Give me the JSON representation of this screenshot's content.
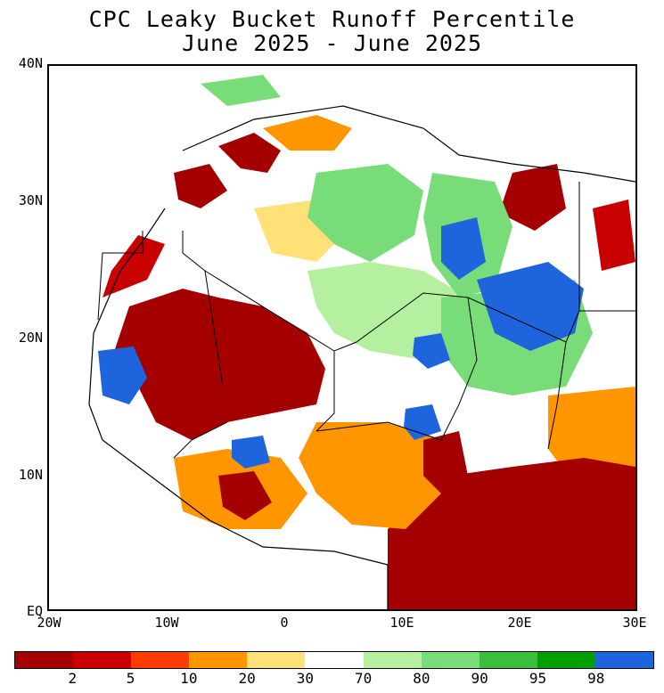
{
  "title": {
    "line1": "CPC Leaky Bucket Runoff Percentile",
    "line2": "June 2025 - June 2025"
  },
  "axes": {
    "lat_labels": [
      "40N",
      "30N",
      "20N",
      "10N",
      "EQ"
    ],
    "lon_labels": [
      "20W",
      "10W",
      "0",
      "10E",
      "20E",
      "30E"
    ],
    "lat_range": [
      0,
      40
    ],
    "lon_range": [
      -20,
      30
    ]
  },
  "colorbar": {
    "labels": [
      "2",
      "5",
      "10",
      "20",
      "30",
      "70",
      "80",
      "90",
      "95",
      "98"
    ],
    "colors": [
      "#a50000",
      "#c80000",
      "#ff3c00",
      "#ff9600",
      "#ffe178",
      "#ffffff",
      "#b4f0a0",
      "#78dc78",
      "#3cbe3c",
      "#00a000",
      "#1e64dc"
    ]
  }
}
